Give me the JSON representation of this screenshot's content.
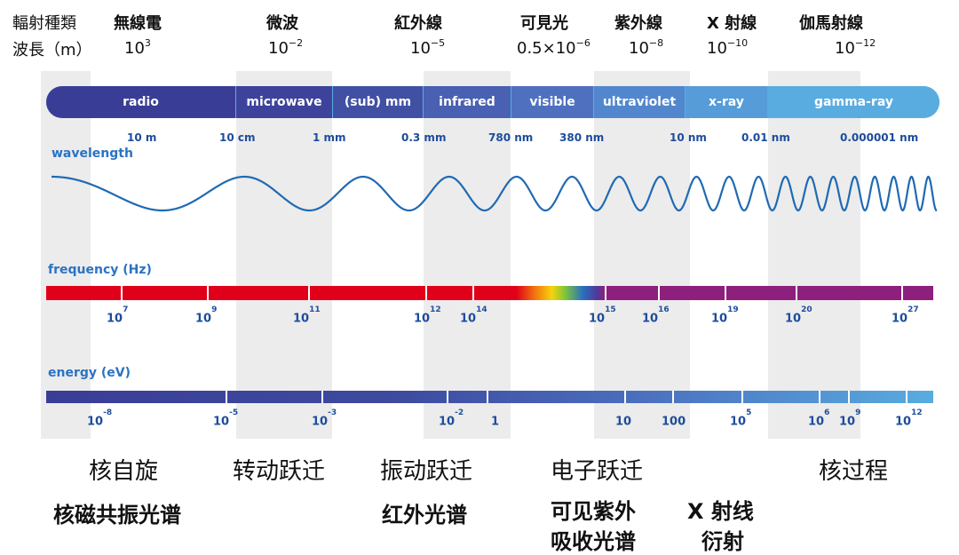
{
  "header": {
    "row1_label": "輻射種類",
    "row2_label": "波長（m）",
    "types": [
      {
        "name": "無線電",
        "base": "10",
        "exp": "3"
      },
      {
        "name": "微波",
        "base": "10",
        "exp": "−2"
      },
      {
        "name": "紅外線",
        "base": "10",
        "exp": "−5"
      },
      {
        "name": "可見光",
        "base": "0.5×10",
        "exp": "−6"
      },
      {
        "name": "紫外線",
        "base": "10",
        "exp": "−8"
      },
      {
        "name": "X 射線",
        "base": "10",
        "exp": "−10"
      },
      {
        "name": "伽馬射線",
        "base": "10",
        "exp": "−12"
      }
    ]
  },
  "bands": [
    "radio",
    "microwave",
    "(sub) mm",
    "infrared",
    "visible",
    "ultraviolet",
    "x-ray",
    "gamma-ray"
  ],
  "wavelength_ticks": [
    "10 m",
    "10 cm",
    "1 mm",
    "0.3 mm",
    "780 nm",
    "380 nm",
    "10 nm",
    "0.01 nm",
    "0.000001 nm"
  ],
  "wavelength_label": "wavelength",
  "frequency_label": "frequency (Hz)",
  "frequency_ticks": [
    {
      "base": "10",
      "exp": "7"
    },
    {
      "base": "10",
      "exp": "9"
    },
    {
      "base": "10",
      "exp": "11"
    },
    {
      "base": "10",
      "exp": "12"
    },
    {
      "base": "10",
      "exp": "14"
    },
    {
      "base": "10",
      "exp": "15"
    },
    {
      "base": "10",
      "exp": "16"
    },
    {
      "base": "10",
      "exp": "19"
    },
    {
      "base": "10",
      "exp": "20"
    },
    {
      "base": "10",
      "exp": "27"
    }
  ],
  "energy_label": "energy (eV)",
  "energy_ticks": [
    {
      "base": "10",
      "exp": "-8"
    },
    {
      "base": "10",
      "exp": "-5"
    },
    {
      "base": "10",
      "exp": "-3"
    },
    {
      "base": "10",
      "exp": "-2"
    },
    {
      "base": "1",
      "exp": ""
    },
    {
      "base": "10",
      "exp": ""
    },
    {
      "base": "100",
      "exp": ""
    },
    {
      "base": "10",
      "exp": "5"
    },
    {
      "base": "10",
      "exp": "6"
    },
    {
      "base": "10",
      "exp": "9"
    },
    {
      "base": "10",
      "exp": "12"
    }
  ],
  "transitions": [
    "核自旋",
    "转动跃迁",
    "振动跃迁",
    "电子跃迁",
    "核过程"
  ],
  "techniques": {
    "nmr": "核磁共振光谱",
    "ir": "红外光谱",
    "uv_line1": "可见紫外",
    "uv_line2": "吸收光谱",
    "xrd_line1": "X 射线",
    "xrd_line2": "衍射"
  },
  "colors": {
    "band_dark": "#3a3d96",
    "band_mid": "#4a64b4",
    "band_light": "#59ace0",
    "frequency_red": "#e1001a",
    "frequency_purple": "#8d1f7d",
    "energy_blue": "#3e4b9f",
    "wave_blue": "#1f6ab3"
  }
}
